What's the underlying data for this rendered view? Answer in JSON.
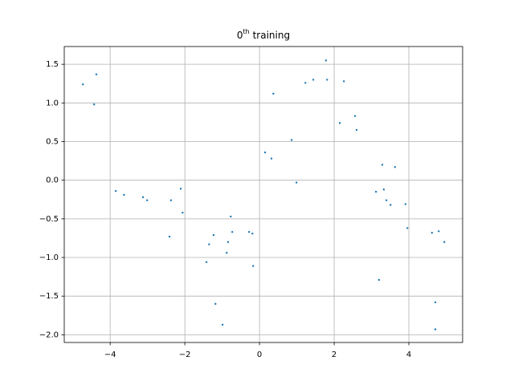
{
  "chart_data": {
    "type": "scatter",
    "title": {
      "base": "0",
      "superscript": "th",
      "text": " training"
    },
    "xlim": [
      -5.23,
      5.44
    ],
    "ylim": [
      -2.1,
      1.73
    ],
    "xticks": [
      {
        "value": -4,
        "label": "−4"
      },
      {
        "value": -2,
        "label": "−2"
      },
      0,
      2,
      4
    ],
    "yticks": [
      {
        "value": -2.0,
        "label": "−2.0"
      },
      {
        "value": -1.5,
        "label": "−1.5"
      },
      {
        "value": -1.0,
        "label": "−1.0"
      },
      {
        "value": -0.5,
        "label": "−0.5"
      },
      {
        "value": 0.0,
        "label": "0.0"
      },
      0.5,
      {
        "value": 1.0,
        "label": "1.0"
      },
      1.5
    ],
    "grid": true,
    "series": [
      {
        "color": "#1f77b4",
        "x": [
          -4.73,
          -4.43,
          -4.37,
          -3.85,
          -3.63,
          -3.12,
          -3.01,
          -2.41,
          -2.37,
          -2.11,
          -2.06,
          -1.42,
          -1.35,
          -1.23,
          -1.18,
          -0.99,
          -0.88,
          -0.84,
          -0.77,
          -0.73,
          -0.28,
          -0.19,
          -0.17,
          0.15,
          0.32,
          0.37,
          0.86,
          0.99,
          1.23,
          1.44,
          1.78,
          1.81,
          2.15,
          2.26,
          2.56,
          2.6,
          3.12,
          3.2,
          3.29,
          3.33,
          3.4,
          3.51,
          3.63,
          3.91,
          3.96,
          4.62,
          4.71,
          4.71,
          4.8,
          4.95
        ],
        "values": [
          1.24,
          0.98,
          1.37,
          -0.14,
          -0.19,
          -0.22,
          -0.26,
          -0.73,
          -0.26,
          -0.11,
          -0.42,
          -1.06,
          -0.83,
          -0.71,
          -1.6,
          -1.87,
          -0.94,
          -0.8,
          -0.47,
          -0.67,
          -0.67,
          -0.69,
          -1.11,
          0.36,
          0.28,
          1.12,
          0.52,
          -0.03,
          1.26,
          1.3,
          1.55,
          1.3,
          0.74,
          1.28,
          0.83,
          0.65,
          -0.15,
          -1.29,
          0.2,
          -0.12,
          -0.26,
          -0.32,
          0.17,
          -0.31,
          -0.62,
          -0.68,
          -1.58,
          -1.93,
          -0.66,
          -0.8
        ]
      }
    ]
  }
}
